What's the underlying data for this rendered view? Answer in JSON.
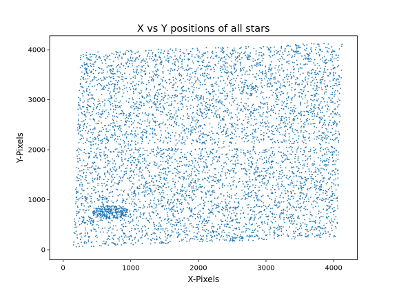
{
  "chart_data": {
    "type": "scatter",
    "title": "X vs Y positions of all stars",
    "xlabel": "X-Pixels",
    "ylabel": "Y-Pixels",
    "xlim": [
      -200,
      4350
    ],
    "ylim": [
      -200,
      4280
    ],
    "xticks": [
      0,
      1000,
      2000,
      3000,
      4000
    ],
    "yticks": [
      0,
      1000,
      2000,
      3000,
      4000
    ],
    "grid": false,
    "marker_color": "#1f77b4",
    "point_count": 6000,
    "distribution": {
      "corners": [
        [
          150,
          50
        ],
        [
          4050,
          250
        ],
        [
          4130,
          4150
        ],
        [
          250,
          3950
        ]
      ],
      "cluster_center": [
        700,
        750
      ],
      "gap_row_y": 2080
    }
  }
}
